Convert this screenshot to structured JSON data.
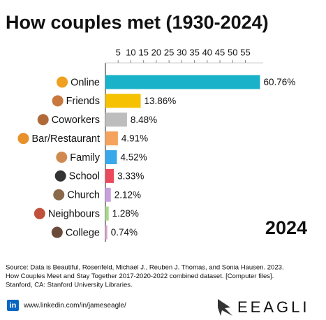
{
  "chart_data": {
    "type": "bar",
    "orientation": "horizontal",
    "title": "How couples met (1930-2024)",
    "categories": [
      "Online",
      "Friends",
      "Coworkers",
      "Bar/Restaurant",
      "Family",
      "School",
      "Church",
      "Neighbours",
      "College"
    ],
    "values": [
      60.76,
      13.86,
      8.48,
      4.91,
      4.52,
      3.33,
      2.12,
      1.28,
      0.74
    ],
    "value_labels": [
      "60.76%",
      "13.86%",
      "8.48%",
      "4.91%",
      "4.52%",
      "3.33%",
      "2.12%",
      "1.28%",
      "0.74%"
    ],
    "colors": [
      "#1ab2c9",
      "#f5c100",
      "#bdbdbd",
      "#f5a35c",
      "#38a8ea",
      "#ea4a5c",
      "#c9a0de",
      "#a6d98a",
      "#d9a2c9"
    ],
    "xlim": [
      0,
      62
    ],
    "xticks": [
      5,
      10,
      15,
      20,
      25,
      30,
      35,
      40,
      45,
      50,
      55
    ],
    "annotation": "2024",
    "source": [
      "Source: Data is Beautiful, Rosenfeld, Michael J., Reuben J. Thomas, and Sonia Hausen. 2023.",
      "How Couples Meet and Stay Together 2017-2020-2022 combined dataset. [Computer files].",
      "Stanford, CA: Stanford University Libraries."
    ],
    "linkedin_icon": "in",
    "linkedin": "www.linkedin.com/in/jameseagle/",
    "logo": "EEAGLI"
  }
}
